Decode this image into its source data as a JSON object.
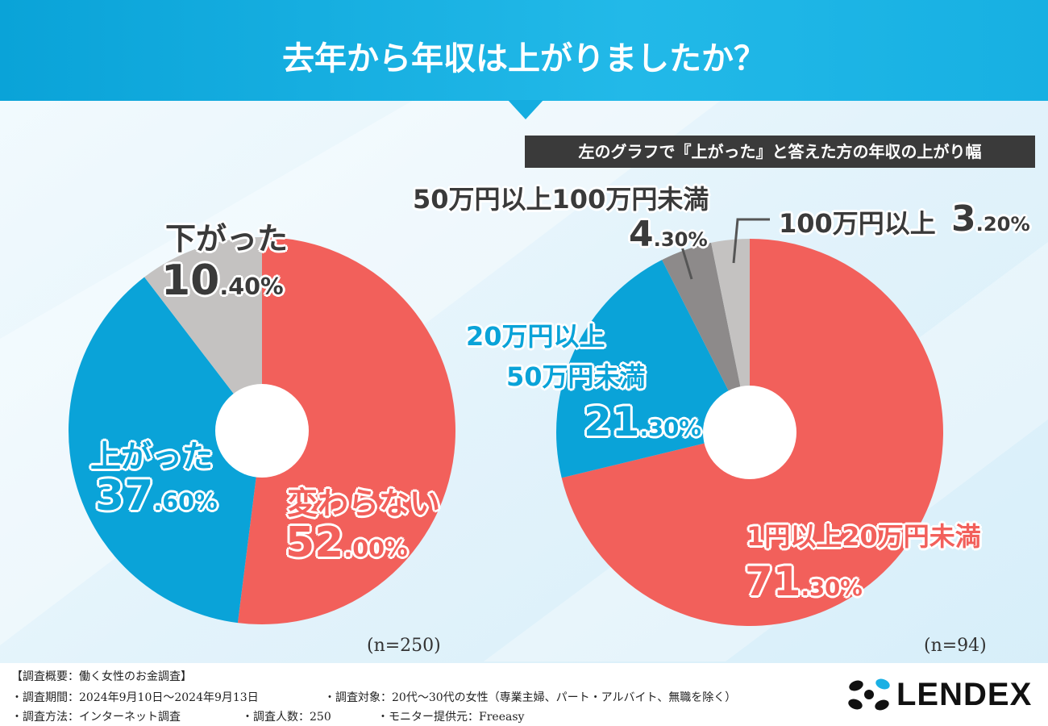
{
  "header": {
    "title": "去年から年収は上がりましたか？"
  },
  "subtitle": "左のグラフで『上がった』と答えた方の年収の上がり幅",
  "colors": {
    "red": "#f2605b",
    "blue": "#0aa3d8",
    "gray_light": "#c4c2c1",
    "gray_dark": "#8d8a8a"
  },
  "chart_data": [
    {
      "type": "pie",
      "title": "去年から年収は上がりましたか？",
      "n_label": "(n=250)",
      "slices": [
        {
          "key": "kawaranai",
          "name": "変わらない",
          "value": 52.0,
          "int": "52",
          "dec": ".00%",
          "color": "#f2605b"
        },
        {
          "key": "agatta",
          "name": "上がった",
          "value": 37.6,
          "int": "37",
          "dec": ".60%",
          "color": "#0aa3d8"
        },
        {
          "key": "sagatta",
          "name": "下がった",
          "value": 10.4,
          "int": "10",
          "dec": ".40%",
          "color": "#c4c2c1"
        }
      ]
    },
    {
      "type": "pie",
      "title": "左のグラフで『上がった』と答えた方の年収の上がり幅",
      "n_label": "(n=94)",
      "slices": [
        {
          "key": "s1",
          "name": "1円以上20万円未満",
          "value": 71.3,
          "int": "71",
          "dec": ".30%",
          "color": "#f2605b"
        },
        {
          "key": "s2",
          "name": "20万円以上50万円未満",
          "name_line1": "20万円以上",
          "name_line2": "50万円未満",
          "value": 21.3,
          "int": "21",
          "dec": ".30%",
          "color": "#0aa3d8"
        },
        {
          "key": "s3",
          "name": "50万円以上100万円未満",
          "value": 4.3,
          "int": "4",
          "dec": ".30%",
          "color": "#8d8a8a"
        },
        {
          "key": "s4",
          "name": "100万円以上",
          "value": 3.2,
          "int": "3",
          "dec": ".20%",
          "color": "#c4c2c1"
        }
      ]
    }
  ],
  "footer": {
    "heading": "【調査概要：働く女性のお金調査】",
    "period": "・調査期間：2024年9月10日〜2024年9月13日",
    "target": "・調査対象：20代〜30代の女性（専業主婦、パート・アルバイト、無職を除く）",
    "method": "・調査方法：インターネット調査",
    "count": "・調査人数：250",
    "provider": "・モニター提供元：Freeasy"
  },
  "logo": {
    "text": "LENDEX"
  }
}
